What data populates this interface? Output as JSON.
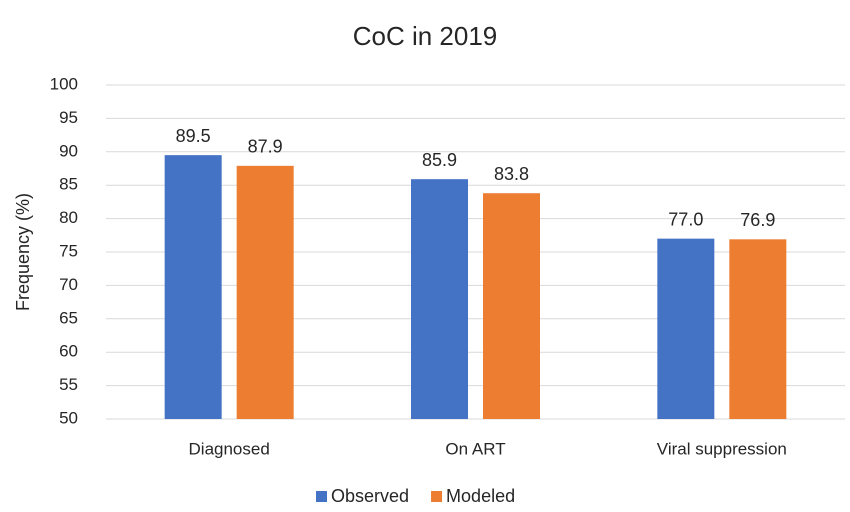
{
  "chart_data": {
    "type": "bar",
    "title": "CoC in 2019",
    "y_label": "Frequency (%)",
    "categories": [
      "Diagnosed",
      "On ART",
      "Viral suppression"
    ],
    "series": [
      {
        "name": "Observed",
        "color": "#4472c4",
        "values": [
          89.5,
          85.9,
          77.0
        ],
        "value_labels": [
          "89.5",
          "85.9",
          "77.0"
        ]
      },
      {
        "name": "Modeled",
        "color": "#ed7d31",
        "values": [
          87.9,
          83.8,
          76.9
        ],
        "value_labels": [
          "87.9",
          "83.8",
          "76.9"
        ]
      }
    ],
    "ylim": [
      50,
      100
    ],
    "yticks": [
      50,
      55,
      60,
      65,
      70,
      75,
      80,
      85,
      90,
      95,
      100
    ],
    "grid": true,
    "legend": "bottom"
  }
}
